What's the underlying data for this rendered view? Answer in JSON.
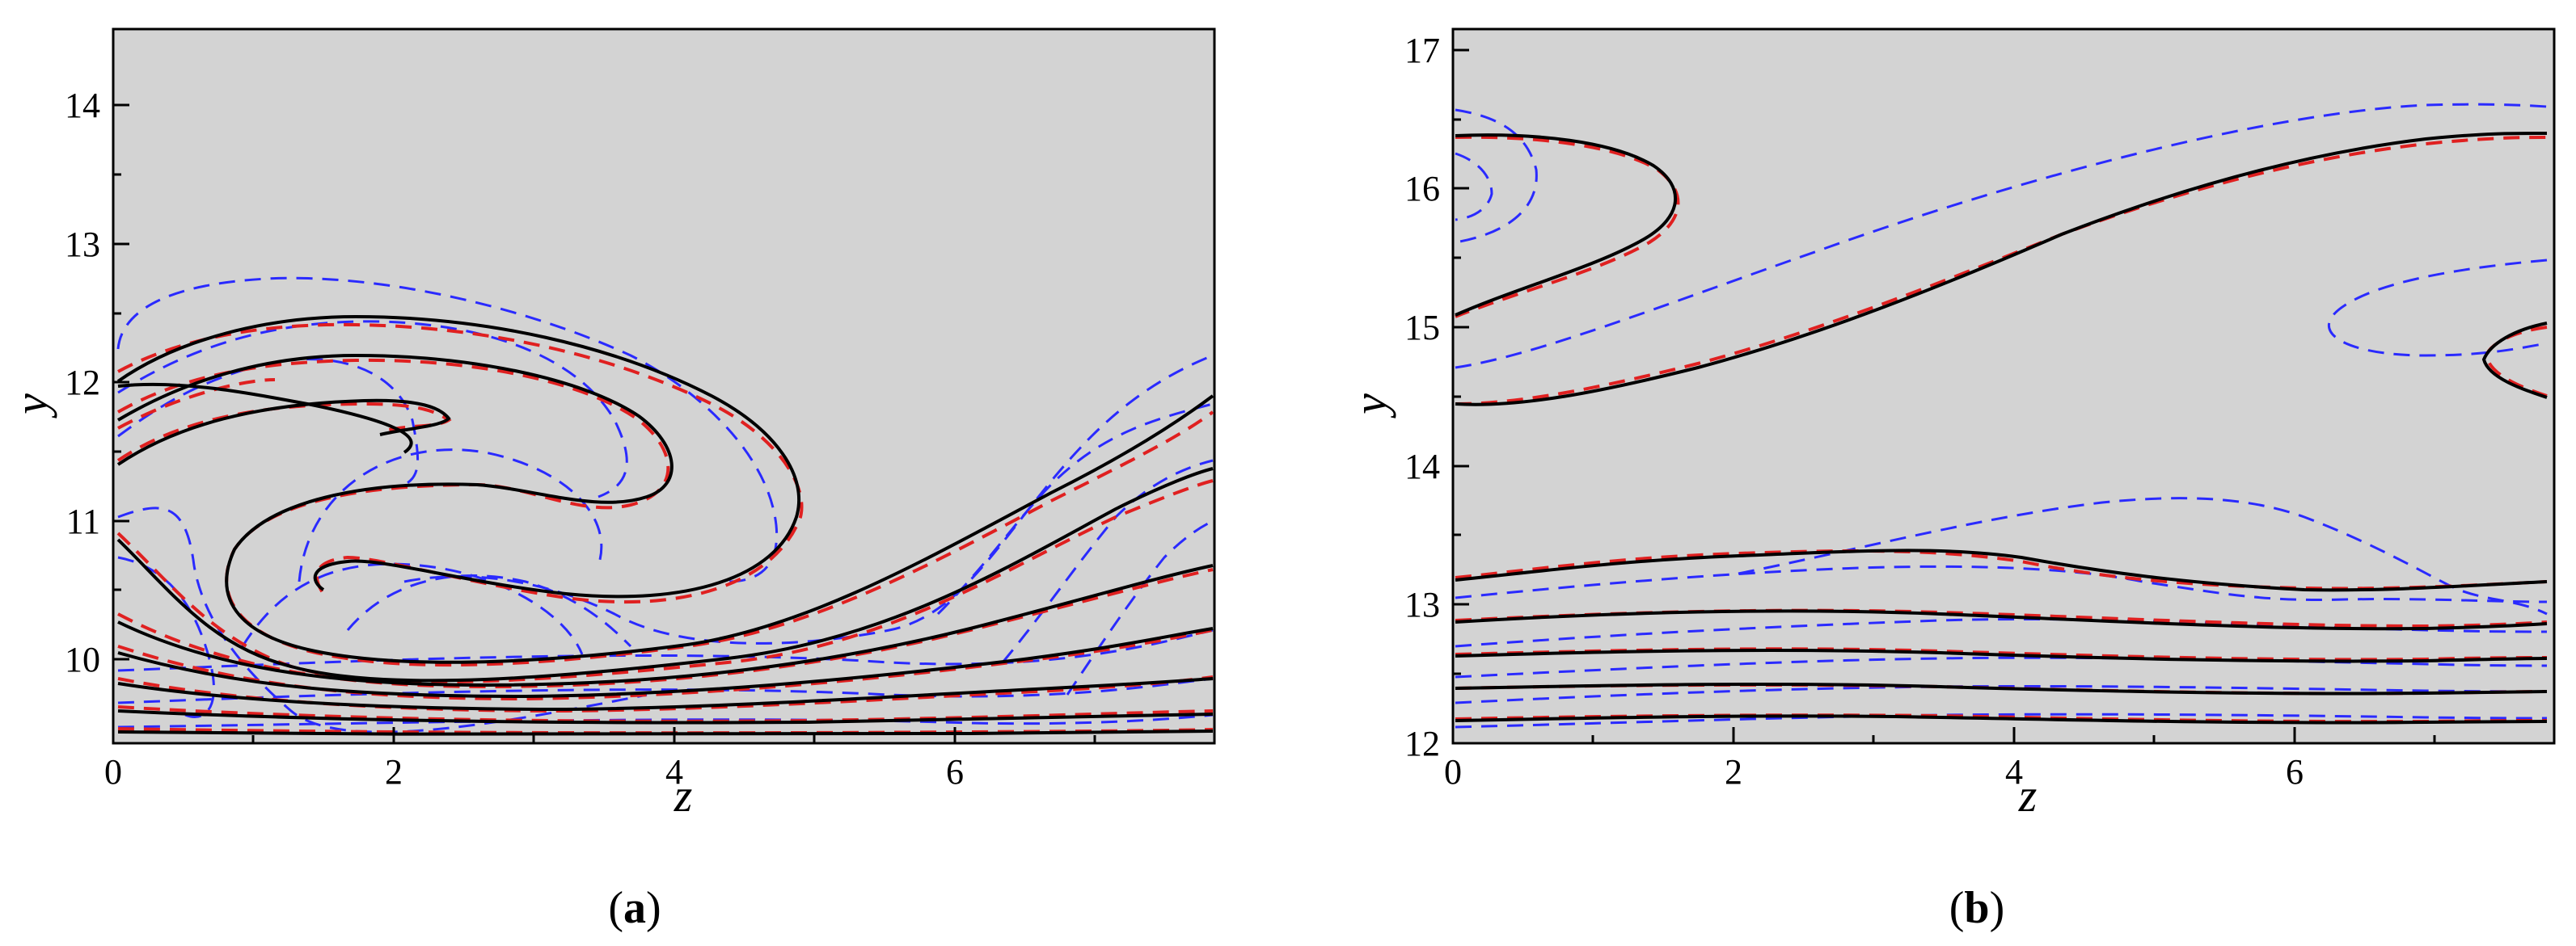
{
  "chart_data": [
    {
      "type": "contour",
      "panel_label": "a",
      "xlabel": "z",
      "ylabel": "y",
      "xlim": [
        0,
        7.85
      ],
      "ylim": [
        9.45,
        14.55
      ],
      "xticks": [
        0,
        2,
        4,
        6
      ],
      "yticks": [
        10,
        11,
        12,
        13,
        14
      ],
      "background": "#d3d3d3",
      "series_colors": {
        "solid": "#000000",
        "dashed_red": "#e02020",
        "dashed_blue": "#2a2aff"
      }
    },
    {
      "type": "contour",
      "panel_label": "b",
      "xlabel": "z",
      "ylabel": "y",
      "xlim": [
        0,
        7.85
      ],
      "ylim": [
        12.0,
        17.15
      ],
      "xticks": [
        0,
        2,
        4,
        6
      ],
      "yticks": [
        12,
        13,
        14,
        15,
        16,
        17
      ],
      "background": "#d3d3d3",
      "series_colors": {
        "solid": "#000000",
        "dashed_red": "#e02020",
        "dashed_blue": "#2a2aff"
      }
    }
  ]
}
